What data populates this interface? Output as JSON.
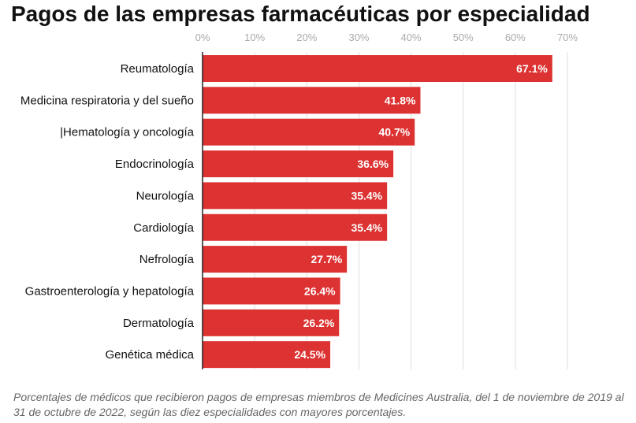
{
  "title": "Pagos de las empresas farmacéuticas por especialidad",
  "caption": "Porcentajes de médicos que recibieron pagos de empresas miembros de Medicines Australia, del 1 de noviembre de 2019 al 31 de octubre de 2022, según las diez especialidades con mayores porcentajes.",
  "colors": {
    "bar": "#dd3232",
    "grid": "#dedede",
    "axis": "#222222",
    "tick": "#aaaaaa",
    "label_inside": "#ffffff"
  },
  "chart_data": {
    "type": "bar",
    "orientation": "horizontal",
    "categories": [
      "Reumatología",
      "Medicina respiratoria y del sueño",
      "|Hematología y oncología",
      "Endocrinología",
      "Neurología",
      "Cardiología",
      "Nefrología",
      "Gastroenterología y hepatología",
      "Dermatología",
      "Genética médica"
    ],
    "values": [
      67.1,
      41.8,
      40.7,
      36.6,
      35.4,
      35.4,
      27.7,
      26.4,
      26.2,
      24.5
    ],
    "value_labels": [
      "67.1%",
      "41.8%",
      "40.7%",
      "36.6%",
      "35.4%",
      "35.4%",
      "27.7%",
      "26.4%",
      "26.2%",
      "24.5%"
    ],
    "xlim": [
      0,
      70
    ],
    "xticks": [
      0,
      10,
      20,
      30,
      40,
      50,
      60,
      70
    ],
    "xtick_labels": [
      "0%",
      "10%",
      "20%",
      "30%",
      "40%",
      "50%",
      "60%",
      "70%"
    ],
    "axis_position": "top",
    "grid": true,
    "xlabel": "",
    "ylabel": ""
  }
}
